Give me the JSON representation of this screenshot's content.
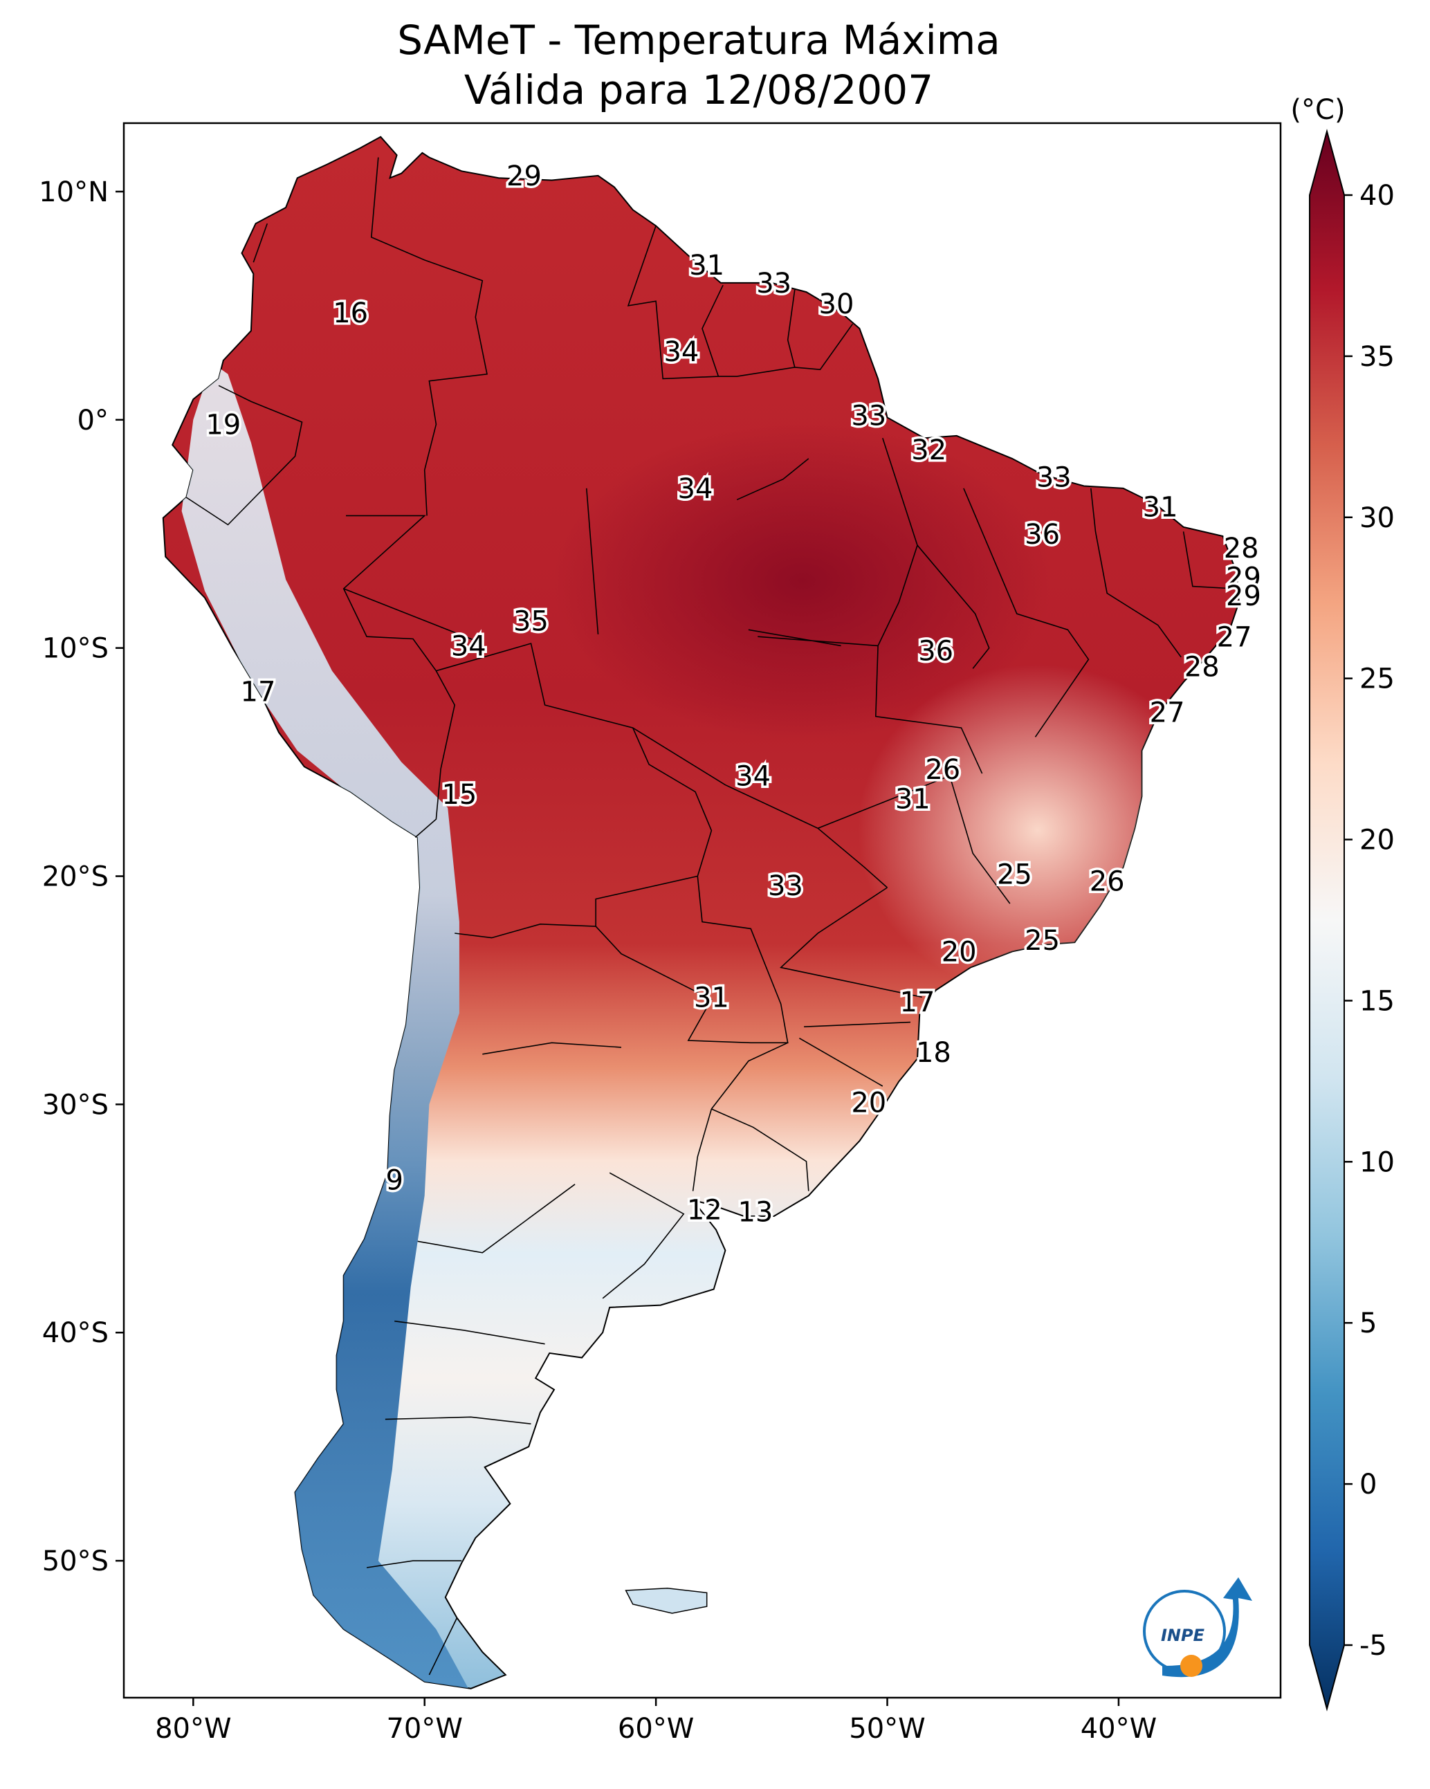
{
  "title": {
    "line1": "SAMeT - Temperatura Máxima",
    "line2": "Válida para 12/08/2007"
  },
  "map": {
    "lon_range": [
      -83,
      -33
    ],
    "lat_range": [
      -56,
      13
    ],
    "lon_ticks": [
      {
        "value": -80,
        "label": "80°W"
      },
      {
        "value": -70,
        "label": "70°W"
      },
      {
        "value": -60,
        "label": "60°W"
      },
      {
        "value": -50,
        "label": "50°W"
      },
      {
        "value": -40,
        "label": "40°W"
      }
    ],
    "lat_ticks": [
      {
        "value": 10,
        "label": "10°N"
      },
      {
        "value": 0,
        "label": "0°"
      },
      {
        "value": -10,
        "label": "10°S"
      },
      {
        "value": -20,
        "label": "20°S"
      },
      {
        "value": -30,
        "label": "30°S"
      },
      {
        "value": -40,
        "label": "40°S"
      },
      {
        "value": -50,
        "label": "50°S"
      }
    ],
    "contour_labels": [
      {
        "lon": -65.7,
        "lat": 10.6,
        "text": "29"
      },
      {
        "lon": -57.8,
        "lat": 6.7,
        "text": "31"
      },
      {
        "lon": -54.9,
        "lat": 5.9,
        "text": "33"
      },
      {
        "lon": -52.2,
        "lat": 5.0,
        "text": "30"
      },
      {
        "lon": -73.2,
        "lat": 4.6,
        "text": "16"
      },
      {
        "lon": -58.9,
        "lat": 2.9,
        "text": "34"
      },
      {
        "lon": -50.8,
        "lat": 0.1,
        "text": "33"
      },
      {
        "lon": -78.7,
        "lat": -0.3,
        "text": "19"
      },
      {
        "lon": -48.2,
        "lat": -1.4,
        "text": "32"
      },
      {
        "lon": -42.8,
        "lat": -2.6,
        "text": "33"
      },
      {
        "lon": -58.3,
        "lat": -3.1,
        "text": "34"
      },
      {
        "lon": -38.2,
        "lat": -3.9,
        "text": "31"
      },
      {
        "lon": -43.3,
        "lat": -5.1,
        "text": "36"
      },
      {
        "lon": -34.7,
        "lat": -5.7,
        "text": "28"
      },
      {
        "lon": -34.6,
        "lat": -7.0,
        "text": "29"
      },
      {
        "lon": -34.6,
        "lat": -7.8,
        "text": "29"
      },
      {
        "lon": -65.4,
        "lat": -8.9,
        "text": "35"
      },
      {
        "lon": -35.0,
        "lat": -9.6,
        "text": "27"
      },
      {
        "lon": -47.9,
        "lat": -10.2,
        "text": "36"
      },
      {
        "lon": -68.1,
        "lat": -10.0,
        "text": "34"
      },
      {
        "lon": -36.4,
        "lat": -10.9,
        "text": "28"
      },
      {
        "lon": -77.2,
        "lat": -12.0,
        "text": "17"
      },
      {
        "lon": -37.9,
        "lat": -12.9,
        "text": "27"
      },
      {
        "lon": -47.6,
        "lat": -15.4,
        "text": "26"
      },
      {
        "lon": -55.8,
        "lat": -15.7,
        "text": "34"
      },
      {
        "lon": -48.9,
        "lat": -16.7,
        "text": "31"
      },
      {
        "lon": -68.5,
        "lat": -16.5,
        "text": "15"
      },
      {
        "lon": -44.5,
        "lat": -20.0,
        "text": "25"
      },
      {
        "lon": -40.5,
        "lat": -20.3,
        "text": "26"
      },
      {
        "lon": -54.4,
        "lat": -20.5,
        "text": "33"
      },
      {
        "lon": -43.3,
        "lat": -22.9,
        "text": "25"
      },
      {
        "lon": -46.9,
        "lat": -23.4,
        "text": "20"
      },
      {
        "lon": -48.7,
        "lat": -25.6,
        "text": "17"
      },
      {
        "lon": -57.6,
        "lat": -25.4,
        "text": "31"
      },
      {
        "lon": -48.0,
        "lat": -27.8,
        "text": "18"
      },
      {
        "lon": -50.8,
        "lat": -30.0,
        "text": "20"
      },
      {
        "lon": -71.3,
        "lat": -33.4,
        "text": "9"
      },
      {
        "lon": -57.9,
        "lat": -34.7,
        "text": "12"
      },
      {
        "lon": -55.7,
        "lat": -34.8,
        "text": "13"
      }
    ]
  },
  "colorbar": {
    "unit_label": "(°C)",
    "ticks": [
      {
        "value": 40,
        "label": "40"
      },
      {
        "value": 35,
        "label": "35"
      },
      {
        "value": 30,
        "label": "30"
      },
      {
        "value": 25,
        "label": "25"
      },
      {
        "value": 20,
        "label": "20"
      },
      {
        "value": 15,
        "label": "15"
      },
      {
        "value": 10,
        "label": "10"
      },
      {
        "value": 5,
        "label": "5"
      },
      {
        "value": 0,
        "label": "0"
      },
      {
        "value": -5,
        "label": "-5"
      }
    ],
    "range": [
      -5,
      40
    ],
    "palette": [
      "#053061",
      "#2166ac",
      "#4393c3",
      "#92c5de",
      "#d1e5f0",
      "#f7f7f7",
      "#fddbc7",
      "#f4a582",
      "#d6604d",
      "#b2182b",
      "#67001f"
    ]
  },
  "logo": {
    "text": "INPE",
    "colors": {
      "blue": "#1a75bb",
      "orange": "#f7941d"
    }
  }
}
